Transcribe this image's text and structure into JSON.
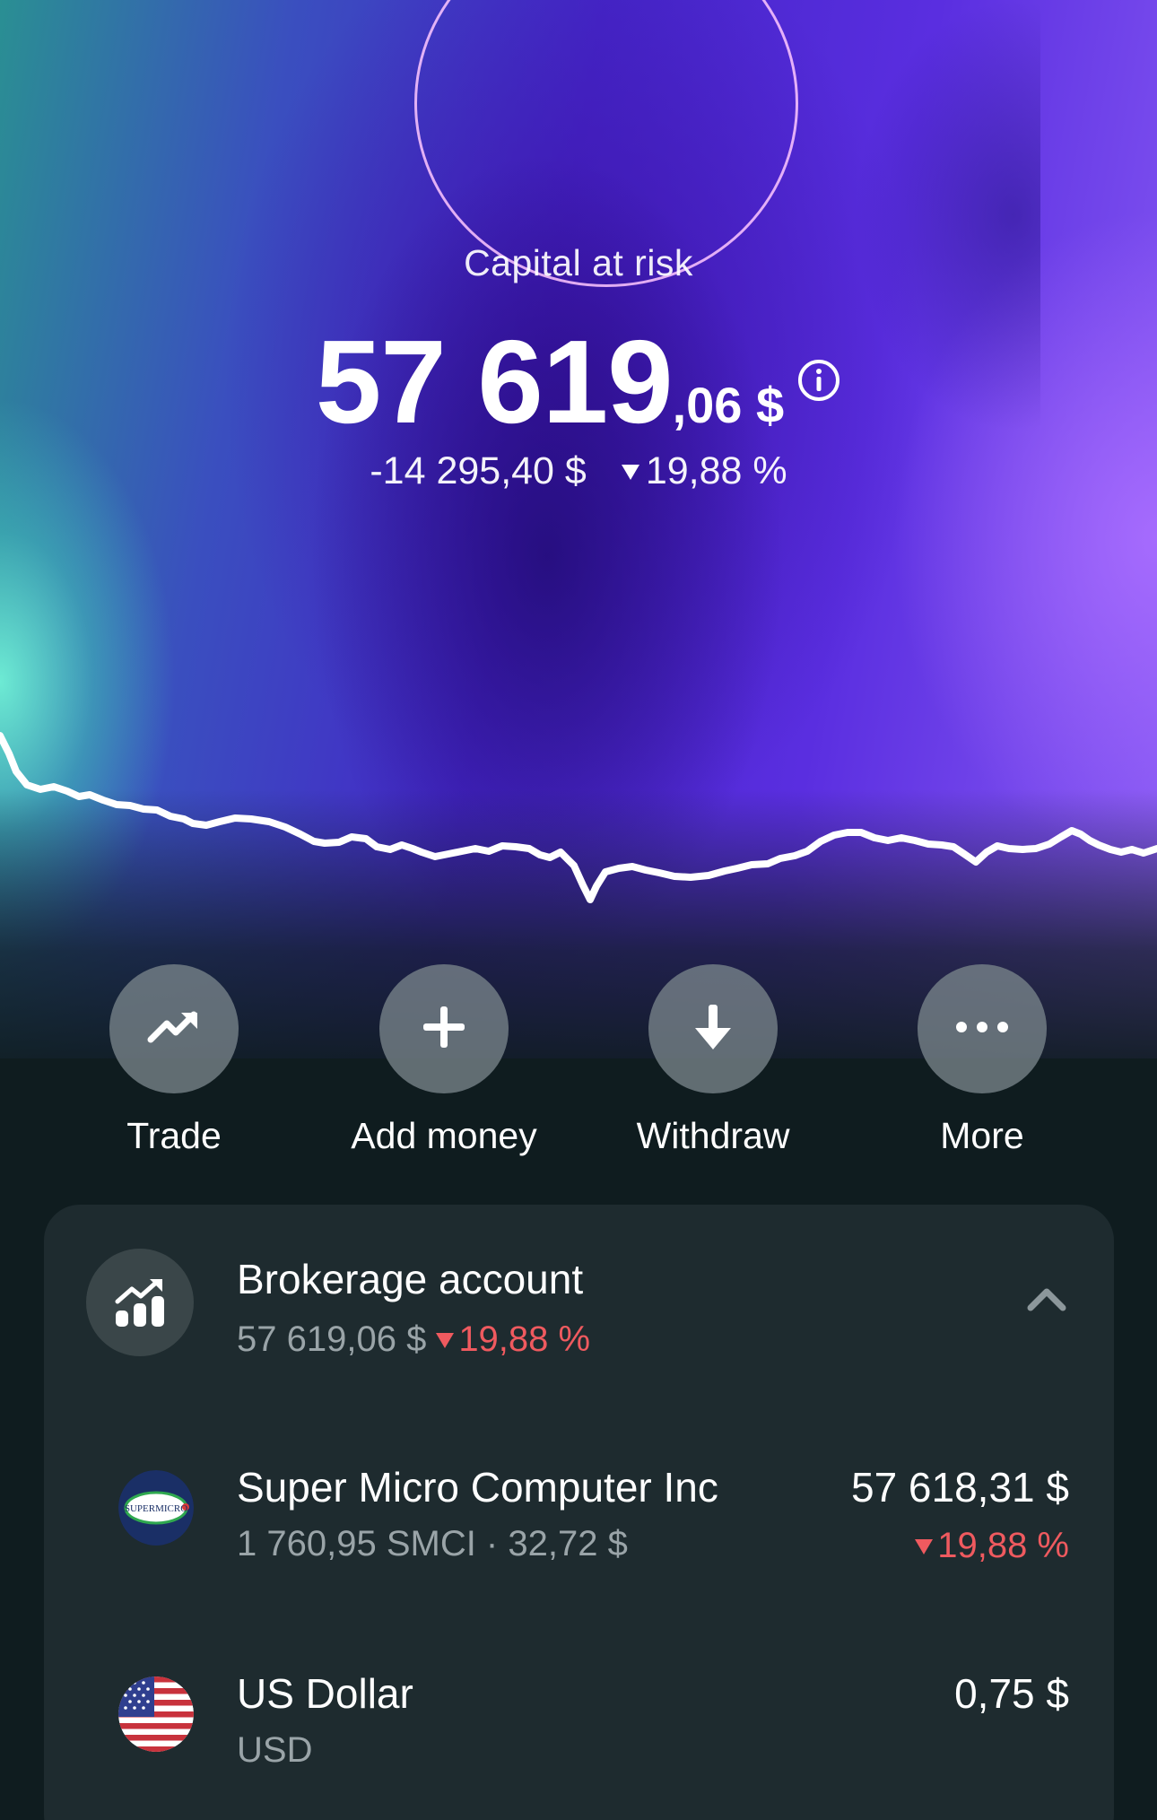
{
  "hero": {
    "capital_label": "Capital at risk",
    "amount_integer": "57 619",
    "amount_decimal": ",06 $",
    "change_amount": "-14 295,40 $",
    "change_percent": "19,88 %",
    "change_direction": "down",
    "info_icon": "info-icon"
  },
  "actions": [
    {
      "label": "Trade",
      "icon": "trending-up-icon"
    },
    {
      "label": "Add money",
      "icon": "plus-icon"
    },
    {
      "label": "Withdraw",
      "icon": "arrow-down-icon"
    },
    {
      "label": "More",
      "icon": "more-dots-icon"
    }
  ],
  "account": {
    "title": "Brokerage account",
    "value": "57 619,06 $",
    "change_percent": "19,88 %",
    "icon": "bar-chart-growth-icon",
    "expanded": true,
    "holdings": [
      {
        "name": "Super Micro Computer Inc",
        "detail": "1 760,95 SMCI · 32,72 $",
        "value": "57 618,31 $",
        "change_percent": "19,88 %",
        "logo": "supermicro-logo",
        "logo_text": "SUPERMICRO"
      },
      {
        "name": "US Dollar",
        "detail": "USD",
        "value": "0,75 $",
        "logo": "us-flag-icon"
      }
    ]
  },
  "colors": {
    "negative": "#ef5a5f",
    "card_bg": "#1e2b2f",
    "page_bg": "#0f1c1f",
    "action_circle": "#6f7a7f",
    "muted_text": "#9aa4a8"
  }
}
